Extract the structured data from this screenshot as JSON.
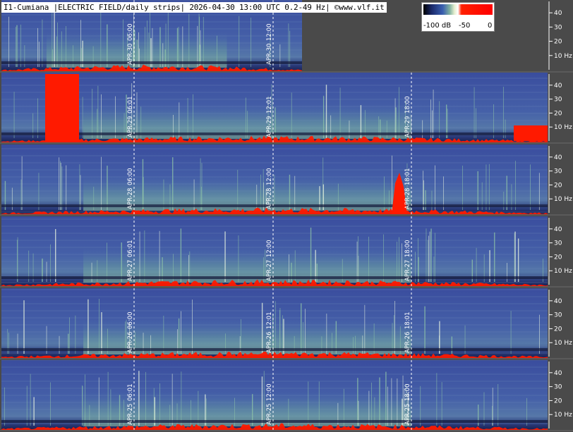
{
  "title": "I1-Cumiana |ELECTRIC FIELD/daily strips| 2026-04-30 13:00 UTC 0.2-49 Hz| ©www.vlf.it",
  "legend": {
    "labels": [
      "-100 dB",
      "-50",
      "0"
    ],
    "colors": [
      "#000000",
      "#1b2a6b",
      "#3a5fb0",
      "#7fb0a0",
      "#e8f0d0",
      "#ffffff",
      "#ff0000",
      "#ff0000"
    ]
  },
  "axis": {
    "freq_ticks": [
      "40",
      "30",
      "20",
      "10 Hz"
    ]
  },
  "strips": [
    {
      "date": "APR-30",
      "times": [
        "06:00",
        "12:00"
      ]
    },
    {
      "date": "APR-29",
      "times": [
        "06:01",
        "12:01",
        "18:00"
      ]
    },
    {
      "date": "APR-28",
      "times": [
        "06:00",
        "12:00",
        "18:01"
      ]
    },
    {
      "date": "APR-27",
      "times": [
        "06:01",
        "12:00",
        "18:00"
      ]
    },
    {
      "date": "APR-26",
      "times": [
        "06:00",
        "12:01",
        "18:01"
      ]
    },
    {
      "date": "APR-25",
      "times": [
        "06:01",
        "12:00",
        "18:00"
      ]
    }
  ],
  "colors": {
    "background": "#4a4a4a",
    "spectrogram_base": "#3b4fa0",
    "high_activity": "#ff1a00"
  }
}
